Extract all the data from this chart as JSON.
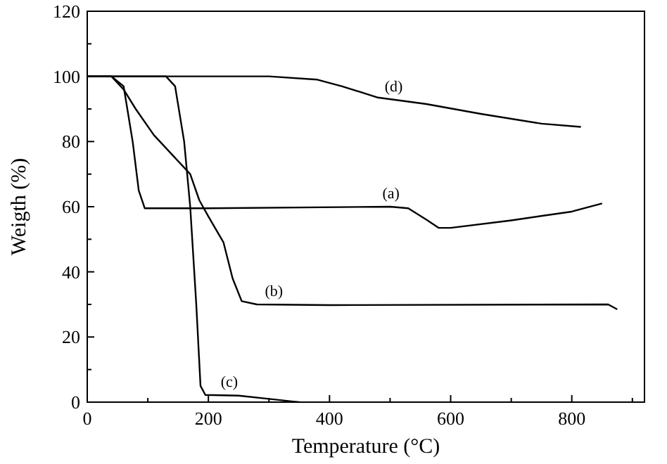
{
  "chart_data": {
    "type": "line",
    "xlabel": "Temperature (°C)",
    "ylabel": "Weigth (%)",
    "xlim": [
      0,
      920
    ],
    "ylim": [
      0,
      120
    ],
    "xticks": [
      0,
      {
        "value": 100,
        "label": null
      },
      200,
      {
        "value": 300,
        "label": null
      },
      400,
      {
        "value": 500,
        "label": null
      },
      600,
      {
        "value": 700,
        "label": null
      },
      800,
      {
        "value": 900,
        "label": null
      }
    ],
    "yticks": [
      0,
      {
        "value": 10,
        "label": null
      },
      20,
      {
        "value": 30,
        "label": null
      },
      40,
      {
        "value": 50,
        "label": null
      },
      60,
      {
        "value": 70,
        "label": null
      },
      80,
      {
        "value": 90,
        "label": null
      },
      100,
      {
        "value": 110,
        "label": null
      },
      120
    ],
    "grid": false,
    "line_style": "solid",
    "series": [
      {
        "name": "(a)",
        "color": "#000000",
        "x": [
          0,
          40,
          60,
          75,
          85,
          95,
          200,
          500,
          530,
          560,
          580,
          600,
          700,
          800,
          850
        ],
        "values": [
          100,
          100,
          97,
          80,
          65,
          59.5,
          59.5,
          60,
          59.5,
          56,
          53.5,
          53.5,
          55.8,
          58.5,
          61
        ]
      },
      {
        "name": "(b)",
        "color": "#000000",
        "x": [
          0,
          40,
          60,
          80,
          110,
          140,
          170,
          185,
          200,
          225,
          240,
          255,
          280,
          400,
          860,
          875
        ],
        "values": [
          100,
          100,
          96,
          90,
          82,
          76,
          70,
          62,
          57,
          49,
          38,
          31,
          30,
          29.8,
          30,
          28.5
        ]
      },
      {
        "name": "(c)",
        "color": "#000000",
        "x": [
          0,
          130,
          145,
          160,
          170,
          180,
          187,
          195,
          250,
          300,
          340,
          350
        ],
        "values": [
          100,
          100,
          97,
          80,
          60,
          30,
          5,
          2.2,
          2,
          1,
          0.2,
          0
        ]
      },
      {
        "name": "(d)",
        "color": "#000000",
        "x": [
          0,
          300,
          380,
          420,
          480,
          560,
          650,
          750,
          815
        ],
        "values": [
          100,
          100,
          99,
          97,
          93.5,
          91.5,
          88.5,
          85.5,
          84.5
        ]
      }
    ]
  }
}
